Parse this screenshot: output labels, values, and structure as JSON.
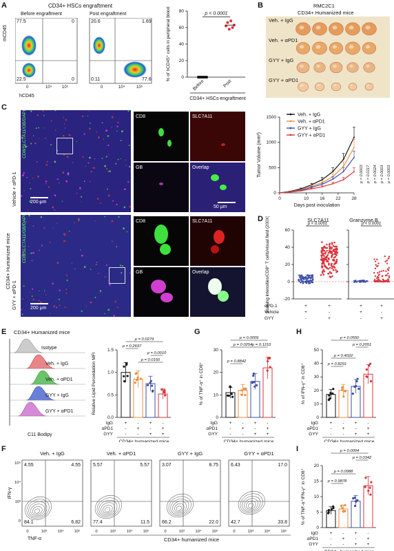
{
  "panels": {
    "A": "A",
    "B": "B",
    "C": "C",
    "D": "D",
    "E": "E",
    "F": "F",
    "G": "G",
    "H": "H",
    "I": "I"
  },
  "a": {
    "title": "CD34+ HSCs engraftment",
    "before": "Before engraftment",
    "post": "Post engraftment",
    "ylabel": "mCD45",
    "xlabel": "hCD45",
    "q_before": [
      "77.5",
      "0",
      "22.5",
      "0"
    ],
    "q_post": [
      "20.6",
      "1.69",
      "0.11",
      "77.6"
    ],
    "ticks": [
      "0",
      "10⁴",
      "10⁵"
    ],
    "chart_ylabel": "% of hCD45⁺ cells in peripheral blood",
    "chart_xlabel": "CD34+ HSCs engraftment",
    "pval": "p < 0.0001",
    "cats": [
      "Before",
      "Post"
    ],
    "yticks": [
      "0",
      "20",
      "40",
      "60",
      "80"
    ]
  },
  "b": {
    "title1": "RMC2C1",
    "title2": "CD34+ Humanized mice",
    "groups": [
      "Veh. + IgG",
      "Veh. + αPD1",
      "GYY + IgG",
      "GYY + αPD1"
    ]
  },
  "c": {
    "side_label": "CD34+ Humanized mice",
    "vehicle_label": "Vehicle + αPD-1",
    "gyy_label": "GYY + αPD-1",
    "stain_cd8": "CD8",
    "stain_slc": "SLC7A11",
    "stain_gb": "GB",
    "stain_overlap": "Overlap",
    "scale1": "200 μm",
    "scale2": "50 μm",
    "side_stain": "CD8/SLC7A11/GB/DAPI"
  },
  "tumor": {
    "ylabel": "Tumor Volume (mm³)",
    "xlabel": "Days post inoculation",
    "legend": [
      "Veh. + IgG",
      "Veh. + αPD1",
      "GYY + IgG",
      "GYY + αPD1"
    ],
    "pvals": [
      "p = 0.0003",
      "p = 0.0117",
      "p = 0.0024",
      "p = 0.0001",
      "p = 0.0001"
    ]
  },
  "d": {
    "title1": "SLC7A11",
    "title2": "Granzyme B",
    "ylabel": "Staining intensities/CD8⁺ T cells/visual field (200X)",
    "p": "p < 0.0001",
    "rows": [
      "αPD-1",
      "Vehicle",
      "GYY"
    ],
    "yticks": [
      "-20",
      "0",
      "20",
      "40",
      "60"
    ]
  },
  "e": {
    "title": "CD34+ Humanized mice",
    "hist_labels": [
      "Isotype",
      "Veh. + IgG",
      "Veh. + αPD1",
      "GYY + IgG",
      "GYY + αPD1"
    ],
    "hist_xlabel": "C11 Bodipy",
    "ylabel": "Relative Lipid Peroxidation MFI",
    "pvals": [
      "p = 0.0279",
      "p = 0.2697",
      "p = 0.0010",
      "p = 0.0150"
    ],
    "yticks": [
      "0.0",
      "0.5",
      "1.0",
      "1.5"
    ],
    "xlabel": "CD34+ humanized mice"
  },
  "g": {
    "ylabel": "% of TNF-α⁺ in CD8⁺",
    "pvals": [
      "p = 0.0009",
      "p = 0.0254",
      "p = 0.1153",
      "p = 0.8842"
    ],
    "yticks": [
      "0",
      "10",
      "20",
      "30"
    ],
    "xlabel": "CD34+ humanized mice"
  },
  "h": {
    "ylabel": "% of IFN-γ⁺ in CD8⁺",
    "pvals": [
      "p = 0.0550",
      "p = 0.2051",
      "p = 0.4022",
      "p = 0.8291"
    ],
    "yticks": [
      "0",
      "10",
      "20",
      "30",
      "40",
      "50"
    ],
    "xlabel": "CD34+ humanized mice"
  },
  "i": {
    "ylabel": "% of TNF-α⁺IFN-γ⁺ in CD8⁺",
    "pvals": [
      "p = 0.0004",
      "p = 0.0342",
      "p = 0.0988",
      "p = 0.9878"
    ],
    "yticks": [
      "0",
      "5",
      "10",
      "15",
      "20"
    ],
    "xlabel": "CD34+ humanized mice"
  },
  "treat_rows": [
    "IgG",
    "αPD1",
    "GYY"
  ],
  "treat_signs": [
    [
      "+",
      "-",
      "+",
      "-"
    ],
    [
      "-",
      "+",
      "-",
      "+"
    ],
    [
      "-",
      "-",
      "+",
      "+"
    ]
  ],
  "f": {
    "titles": [
      "Veh. + IgG",
      "Veh. + αPD1",
      "GYY + IgG",
      "GYY + αPD1"
    ],
    "quads": [
      [
        "4.55",
        "4.55",
        "84.1",
        "6.82"
      ],
      [
        "5.57",
        "5.57",
        "77.4",
        "11.5"
      ],
      [
        "3.07",
        "8.75",
        "66.2",
        "22.0"
      ],
      [
        "6.43",
        "17.0",
        "42.7",
        "33.8"
      ]
    ],
    "ylabel": "IFN-γ",
    "xlabel": "TNF-α",
    "xlabel2": "CD34+ humanized mice",
    "ticks_y": [
      "10⁵",
      "10⁴",
      "10³",
      "0"
    ],
    "ticks_x": [
      "0",
      "10³",
      "10⁴",
      "10⁵"
    ]
  },
  "chart_data": [
    {
      "type": "scatter",
      "title": "",
      "ylabel": "% of hCD45⁺ cells in peripheral blood",
      "categories": [
        "Before",
        "Post"
      ],
      "series": [
        {
          "values": [
            0,
            0,
            0,
            0,
            0,
            0
          ]
        },
        {
          "values": [
            62,
            66,
            58,
            68,
            60,
            63
          ]
        }
      ],
      "ylim": [
        0,
        80
      ]
    },
    {
      "type": "line",
      "title": "",
      "xlabel": "Days post inoculation",
      "ylabel": "Tumor Volume (mm³)",
      "x": [
        0,
        4,
        8,
        12,
        16,
        20,
        24,
        28
      ],
      "ylim": [
        0,
        1500
      ],
      "series": [
        {
          "name": "Veh. + IgG",
          "values": [
            0,
            30,
            80,
            160,
            260,
            420,
            660,
            1100
          ]
        },
        {
          "name": "Veh. + αPD1",
          "values": [
            0,
            25,
            60,
            130,
            200,
            320,
            520,
            900
          ]
        },
        {
          "name": "GYY + IgG",
          "values": [
            0,
            20,
            50,
            110,
            170,
            270,
            420,
            700
          ]
        },
        {
          "name": "GYY + αPD1",
          "values": [
            0,
            15,
            40,
            80,
            120,
            180,
            260,
            420
          ]
        }
      ]
    },
    {
      "type": "bar",
      "title": "",
      "ylabel": "Relative Lipid Peroxidation MFI",
      "categories": [
        "Veh. + IgG",
        "Veh. + αPD1",
        "GYY + IgG",
        "GYY + αPD1"
      ],
      "values": [
        1.0,
        0.85,
        0.75,
        0.52
      ],
      "ylim": [
        0,
        1.5
      ]
    },
    {
      "type": "bar",
      "title": "",
      "ylabel": "% of TNF-α⁺ in CD8⁺",
      "categories": [
        "Veh. + IgG",
        "Veh. + αPD1",
        "GYY + IgG",
        "GYY + αPD1"
      ],
      "values": [
        11,
        12,
        16,
        22
      ],
      "ylim": [
        0,
        30
      ]
    },
    {
      "type": "bar",
      "title": "",
      "ylabel": "% of IFN-γ⁺ in CD8⁺",
      "categories": [
        "Veh. + IgG",
        "Veh. + αPD1",
        "GYY + IgG",
        "GYY + αPD1"
      ],
      "values": [
        17,
        20,
        23,
        32
      ],
      "ylim": [
        0,
        50
      ]
    },
    {
      "type": "bar",
      "title": "",
      "ylabel": "% of TNF-α⁺IFN-γ⁺ in CD8⁺",
      "categories": [
        "Veh. + IgG",
        "Veh. + αPD1",
        "GYY + IgG",
        "GYY + αPD1"
      ],
      "values": [
        5.5,
        6,
        8.5,
        13.5
      ],
      "ylim": [
        0,
        20
      ]
    }
  ],
  "colors": {
    "black": "#111111",
    "orange": "#f08a3c",
    "blue": "#3a4fa8",
    "red": "#d8353a"
  }
}
